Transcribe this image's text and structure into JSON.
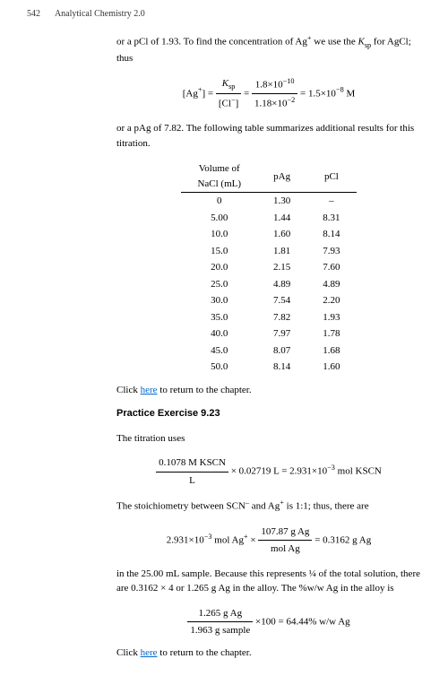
{
  "header": {
    "pageNum": "542",
    "title": "Analytical Chemistry 2.0"
  },
  "intro": {
    "line1a": "or a pCl of 1.93. To find the concentration of Ag",
    "line1b": " we use the ",
    "line1c": " for AgCl; thus"
  },
  "eq1": {
    "lhs_a": "[Ag",
    "lhs_b": "] =",
    "f1num": "K",
    "f1numsub": "sp",
    "f1den_a": "[Cl",
    "f1den_b": "]",
    "f2num": "1.8×10",
    "f2numexp": "−10",
    "f2den": "1.18×10",
    "f2denexp": "−2",
    "rhs": "= 1.5×10",
    "rhsexp": "−8",
    "unit": " M"
  },
  "aftereq1": "or a pAg of 7.82.  The following table summarizes additional results for this titration.",
  "table": {
    "h1a": "Volume of",
    "h1b": "NaCl (mL)",
    "h2": "pAg",
    "h3": "pCl",
    "rows": [
      [
        "0",
        "1.30",
        "–"
      ],
      [
        "5.00",
        "1.44",
        "8.31"
      ],
      [
        "10.0",
        "1.60",
        "8.14"
      ],
      [
        "15.0",
        "1.81",
        "7.93"
      ],
      [
        "20.0",
        "2.15",
        "7.60"
      ],
      [
        "25.0",
        "4.89",
        "4.89"
      ],
      [
        "30.0",
        "7.54",
        "2.20"
      ],
      [
        "35.0",
        "7.82",
        "1.93"
      ],
      [
        "40.0",
        "7.97",
        "1.78"
      ],
      [
        "45.0",
        "8.07",
        "1.68"
      ],
      [
        "50.0",
        "8.14",
        "1.60"
      ]
    ]
  },
  "returnText1": "Click ",
  "returnLink": "here",
  "returnText2": " to return to the chapter.",
  "exerciseTitle": "Practice Exercise 9.23",
  "line2": "The titration uses",
  "eq2": {
    "num": "0.1078 M KSCN",
    "den": "L",
    "mid": "× 0.02719 L = 2.931×10",
    "exp": "−3",
    "unit": " mol KSCN"
  },
  "line3a": "The stoichiometry between SCN",
  "line3b": " and Ag",
  "line3c": " is 1:1; thus, there are",
  "eq3": {
    "lhs": "2.931×10",
    "lhsexp": "−3",
    "lhsunit": " mol Ag",
    "times": " × ",
    "num": "107.87 g Ag",
    "den": "mol Ag",
    "rhs": " = 0.3162 g Ag"
  },
  "line4": "in the 25.00 mL sample. Because this represents ¼ of the total solution, there are 0.3162 × 4 or 1.265 g Ag in the alloy. The %w/w Ag in the alloy is",
  "eq4": {
    "num": "1.265 g Ag",
    "den": "1.963 g sample",
    "rhs": "×100 = 64.44% w/w Ag"
  }
}
